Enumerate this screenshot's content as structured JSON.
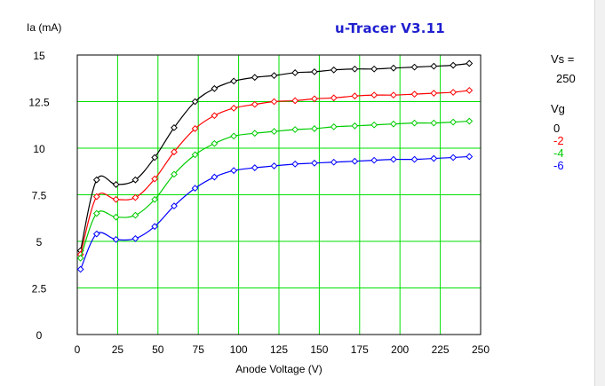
{
  "app": {
    "title": "u-Tracer V3.11"
  },
  "side_panel": {
    "vs_label": "Vs =",
    "vs_value": "250",
    "vg_label": "Vg"
  },
  "chart_data": {
    "type": "line",
    "title": "u-Tracer V3.11",
    "xlabel": "Anode Voltage (V)",
    "ylabel": "Ia (mA)",
    "xlim": [
      0,
      250
    ],
    "ylim": [
      0,
      15
    ],
    "xticks": [
      "0",
      "25",
      "50",
      "75",
      "100",
      "125",
      "150",
      "175",
      "200",
      "225",
      "250"
    ],
    "yticks": [
      "0",
      "2.5",
      "5",
      "7.5",
      "10",
      "12.5",
      "15"
    ],
    "grid": true,
    "marker": "diamond",
    "legend_placement": "right",
    "x": [
      2,
      12,
      24,
      36,
      48,
      60,
      73,
      85,
      97,
      110,
      122,
      135,
      147,
      159,
      172,
      184,
      196,
      209,
      221,
      233,
      243
    ],
    "series": [
      {
        "name": "0",
        "color": "#000000",
        "values": [
          4.5,
          8.3,
          8.05,
          8.3,
          9.5,
          11.1,
          12.5,
          13.2,
          13.6,
          13.8,
          13.9,
          14.05,
          14.1,
          14.2,
          14.25,
          14.25,
          14.3,
          14.35,
          14.4,
          14.45,
          14.55
        ]
      },
      {
        "name": "-2",
        "color": "#ff0000",
        "values": [
          4.3,
          7.4,
          7.25,
          7.35,
          8.35,
          9.8,
          11.05,
          11.75,
          12.15,
          12.35,
          12.5,
          12.55,
          12.65,
          12.7,
          12.8,
          12.85,
          12.85,
          12.9,
          12.95,
          13.0,
          13.1
        ]
      },
      {
        "name": "-4",
        "color": "#00cc00",
        "values": [
          4.1,
          6.5,
          6.3,
          6.4,
          7.25,
          8.6,
          9.65,
          10.25,
          10.65,
          10.8,
          10.9,
          11.0,
          11.05,
          11.15,
          11.2,
          11.25,
          11.3,
          11.35,
          11.35,
          11.4,
          11.45
        ]
      },
      {
        "name": "-6",
        "color": "#0000ff",
        "values": [
          3.5,
          5.4,
          5.1,
          5.15,
          5.8,
          6.9,
          7.85,
          8.45,
          8.8,
          8.95,
          9.05,
          9.15,
          9.2,
          9.25,
          9.3,
          9.35,
          9.4,
          9.4,
          9.45,
          9.5,
          9.55
        ]
      }
    ]
  }
}
